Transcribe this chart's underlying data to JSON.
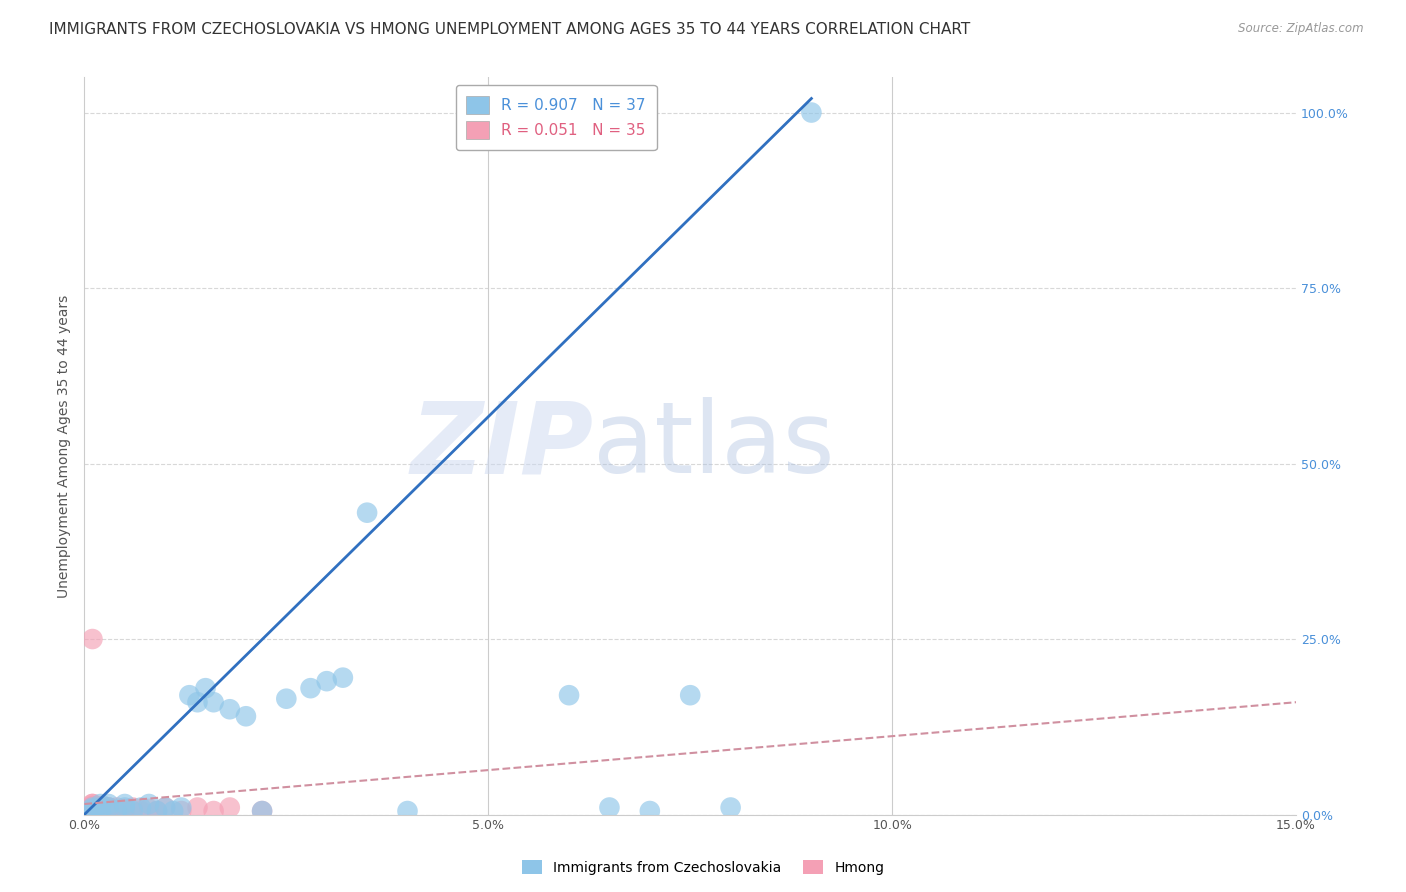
{
  "title": "IMMIGRANTS FROM CZECHOSLOVAKIA VS HMONG UNEMPLOYMENT AMONG AGES 35 TO 44 YEARS CORRELATION CHART",
  "source": "Source: ZipAtlas.com",
  "ylabel": "Unemployment Among Ages 35 to 44 years",
  "legend_entries": [
    {
      "label": "R = 0.907   N = 37",
      "color": "#8ec5e8"
    },
    {
      "label": "R = 0.051   N = 35",
      "color": "#f4a0b5"
    }
  ],
  "watermark_zip": "ZIP",
  "watermark_atlas": "atlas",
  "blue_scatter_x": [
    0.001,
    0.001,
    0.001,
    0.002,
    0.002,
    0.002,
    0.003,
    0.003,
    0.004,
    0.005,
    0.005,
    0.006,
    0.007,
    0.008,
    0.009,
    0.01,
    0.011,
    0.012,
    0.013,
    0.014,
    0.015,
    0.016,
    0.018,
    0.02,
    0.022,
    0.025,
    0.028,
    0.03,
    0.032,
    0.035,
    0.04,
    0.06,
    0.065,
    0.07,
    0.075,
    0.08,
    0.09
  ],
  "blue_scatter_y": [
    0.005,
    0.008,
    0.01,
    0.005,
    0.01,
    0.015,
    0.01,
    0.015,
    0.005,
    0.01,
    0.015,
    0.005,
    0.01,
    0.015,
    0.005,
    0.01,
    0.005,
    0.01,
    0.17,
    0.16,
    0.18,
    0.16,
    0.15,
    0.14,
    0.005,
    0.165,
    0.18,
    0.19,
    0.195,
    0.43,
    0.005,
    0.17,
    0.01,
    0.005,
    0.17,
    0.01,
    1.0
  ],
  "pink_scatter_x": [
    0.001,
    0.001,
    0.001,
    0.001,
    0.001,
    0.001,
    0.001,
    0.001,
    0.001,
    0.001,
    0.002,
    0.002,
    0.002,
    0.002,
    0.002,
    0.002,
    0.003,
    0.003,
    0.003,
    0.003,
    0.004,
    0.004,
    0.005,
    0.005,
    0.006,
    0.007,
    0.008,
    0.009,
    0.01,
    0.012,
    0.014,
    0.016,
    0.018,
    0.022,
    0.001
  ],
  "pink_scatter_y": [
    0.01,
    0.01,
    0.005,
    0.005,
    0.008,
    0.008,
    0.012,
    0.012,
    0.015,
    0.015,
    0.01,
    0.01,
    0.005,
    0.005,
    0.008,
    0.012,
    0.01,
    0.01,
    0.005,
    0.008,
    0.01,
    0.005,
    0.008,
    0.005,
    0.01,
    0.005,
    0.008,
    0.005,
    0.01,
    0.005,
    0.01,
    0.005,
    0.01,
    0.005,
    0.25
  ],
  "blue_line_x": [
    0.0,
    0.09
  ],
  "blue_line_y": [
    0.0,
    1.02
  ],
  "pink_line_x": [
    0.0,
    0.15
  ],
  "pink_line_y": [
    0.015,
    0.16
  ],
  "scatter_blue_color": "#8ec5e8",
  "scatter_pink_color": "#f4a0b5",
  "line_blue_color": "#3070c0",
  "line_pink_color": "#d090a0",
  "grid_color": "#d8d8d8",
  "background_color": "#ffffff",
  "title_fontsize": 11,
  "axis_tick_fontsize": 9,
  "legend_fontsize": 11,
  "ylabel_fontsize": 10,
  "xlim": [
    0.0,
    0.15
  ],
  "ylim": [
    0.0,
    1.05
  ],
  "x_tick_vals": [
    0.0,
    0.05,
    0.1,
    0.15
  ],
  "x_tick_labels": [
    "0.0%",
    "5.0%",
    "10.0%",
    "15.0%"
  ],
  "y_tick_vals": [
    0.0,
    0.25,
    0.5,
    0.75,
    1.0
  ],
  "y_tick_labels_right": [
    "0.0%",
    "25.0%",
    "50.0%",
    "75.0%",
    "100.0%"
  ]
}
